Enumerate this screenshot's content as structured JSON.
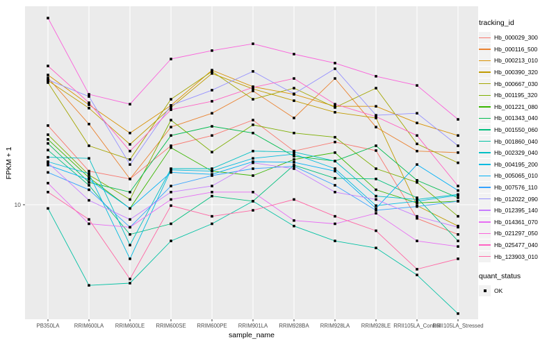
{
  "chart_data": {
    "type": "line",
    "title": "",
    "xlabel": "sample_name",
    "ylabel": "FPKM + 1",
    "y_scale": "log10",
    "ylim": [
      2.8,
      90
    ],
    "grid": "on",
    "panel_bg": "#EBEBEB",
    "grid_color": "#FFFFFF",
    "point_color": "#000000",
    "axis_text_color": "#4D4D4D",
    "y_ticks": [
      {
        "label": "10",
        "value": 10
      }
    ],
    "x_categories": [
      "PB350LA",
      "RRIM600LA",
      "RRIM600LE",
      "RRIM600SE",
      "RRIM600PE",
      "RRIM901LA",
      "RRIM928BA",
      "RRIM928LA",
      "RRIM928LE",
      "RRII105LA_Control",
      "RRII105LA_Stressed"
    ],
    "legend_title": "tracking_id",
    "legend_position": "right",
    "series": [
      {
        "name": "Hb_000029_300",
        "color": "#F8766D",
        "values": [
          24.0,
          14.5,
          13.3,
          19.2,
          21.5,
          25.5,
          18.1,
          20.0,
          18.2,
          8.6,
          7.2
        ]
      },
      {
        "name": "Hb_000116_500",
        "color": "#EA8331",
        "values": [
          40.7,
          24.4,
          13.3,
          23.6,
          27.5,
          35.2,
          26.1,
          40.4,
          23.6,
          18.1,
          17.8
        ]
      },
      {
        "name": "Hb_000213_010",
        "color": "#D89000",
        "values": [
          42.0,
          30.2,
          22.1,
          30.0,
          44.3,
          36.9,
          33.9,
          29.7,
          29.7,
          24.7,
          21.5
        ]
      },
      {
        "name": "Hb_000390_320",
        "color": "#C09B00",
        "values": [
          39.5,
          29.1,
          19.5,
          29.3,
          42.7,
          36.0,
          31.6,
          27.8,
          26.1,
          9.9,
          7.9
        ]
      },
      {
        "name": "Hb_000667_030",
        "color": "#A3A500",
        "values": [
          38.6,
          19.2,
          16.5,
          32.1,
          43.7,
          32.1,
          36.3,
          29.3,
          36.3,
          19.6,
          15.9
        ]
      },
      {
        "name": "Hb_001195_320",
        "color": "#7CAE00",
        "values": [
          21.7,
          13.9,
          10.6,
          25.5,
          17.9,
          24.2,
          22.1,
          21.1,
          14.9,
          12.8,
          8.8
        ]
      },
      {
        "name": "Hb_001221_080",
        "color": "#39B600",
        "values": [
          20.6,
          13.5,
          9.6,
          18.8,
          14.5,
          13.8,
          16.5,
          17.8,
          11.8,
          10.2,
          10.4
        ]
      },
      {
        "name": "Hb_001343_040",
        "color": "#00BB4E",
        "values": [
          19.7,
          12.8,
          11.5,
          21.5,
          23.8,
          22.1,
          17.1,
          16.2,
          19.2,
          13.1,
          10.8
        ]
      },
      {
        "name": "Hb_001550_060",
        "color": "#00BF7D",
        "values": [
          18.3,
          12.4,
          7.2,
          8.1,
          11.0,
          10.4,
          15.5,
          13.4,
          13.3,
          10.8,
          6.7
        ]
      },
      {
        "name": "Hb_001860_040",
        "color": "#00C1A3",
        "values": [
          9.6,
          4.1,
          4.2,
          6.7,
          8.1,
          10.4,
          7.9,
          6.7,
          6.2,
          4.6,
          3.0
        ]
      },
      {
        "name": "Hb_002329_040",
        "color": "#00BFC4",
        "values": [
          16.9,
          16.7,
          6.4,
          14.9,
          14.9,
          18.1,
          17.9,
          16.2,
          11.0,
          10.6,
          11.2
        ]
      },
      {
        "name": "Hb_004195_200",
        "color": "#00BAE0",
        "values": [
          16.1,
          14.1,
          5.5,
          14.7,
          14.5,
          16.7,
          17.5,
          14.9,
          9.9,
          10.4,
          11.1
        ]
      },
      {
        "name": "Hb_005065_010",
        "color": "#00B0F6",
        "values": [
          15.5,
          13.2,
          9.6,
          14.3,
          14.0,
          16.1,
          16.0,
          14.5,
          9.6,
          15.6,
          11.7
        ]
      },
      {
        "name": "Hb_007576_110",
        "color": "#35A2FF",
        "values": [
          14.3,
          11.8,
          7.8,
          12.3,
          13.8,
          14.9,
          15.3,
          12.4,
          9.4,
          9.8,
          10.4
        ]
      },
      {
        "name": "Hb_012022_090",
        "color": "#9590FF",
        "values": [
          39.8,
          33.1,
          15.6,
          30.0,
          35.5,
          43.7,
          34.1,
          45.0,
          26.9,
          27.5,
          19.2
        ]
      },
      {
        "name": "Hb_012395_140",
        "color": "#C77CFF",
        "values": [
          15.9,
          10.5,
          8.5,
          11.5,
          12.3,
          15.9,
          14.9,
          11.5,
          10.6,
          8.8,
          7.8
        ]
      },
      {
        "name": "Hb_014361_070",
        "color": "#E76BF3",
        "values": [
          12.7,
          8.1,
          7.8,
          10.6,
          11.5,
          11.5,
          8.4,
          8.1,
          9.1,
          6.7,
          6.3
        ]
      },
      {
        "name": "Hb_021297_050",
        "color": "#FA62DB",
        "values": [
          78.8,
          33.9,
          30.4,
          50.1,
          55.0,
          59.3,
          52.9,
          47.9,
          41.4,
          37.4,
          25.7
        ]
      },
      {
        "name": "Hb_025477_040",
        "color": "#FF61C3",
        "values": [
          46.4,
          30.9,
          18.1,
          28.6,
          31.4,
          36.6,
          40.4,
          30.4,
          26.5,
          21.5,
          12.3
        ]
      },
      {
        "name": "Hb_123903_010",
        "color": "#FF67A4",
        "values": [
          11.5,
          8.5,
          4.4,
          9.9,
          8.8,
          9.4,
          10.6,
          8.8,
          7.5,
          4.9,
          5.5
        ]
      }
    ],
    "quant_legend": {
      "title": "quant_status",
      "items": [
        {
          "label": "OK",
          "marker": "black-square"
        }
      ]
    }
  }
}
